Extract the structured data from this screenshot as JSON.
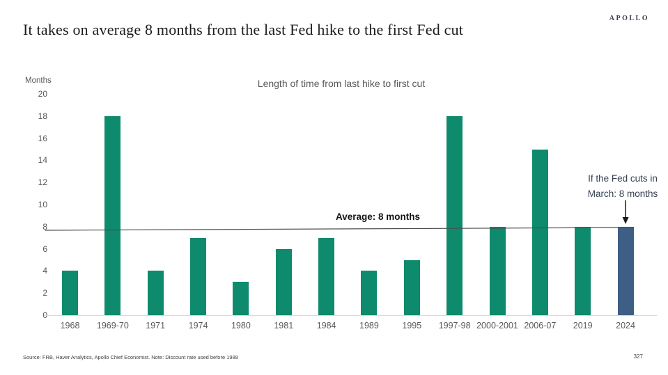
{
  "slide": {
    "title": "It takes on average 8 months from the last Fed hike to the first Fed cut",
    "logo": "APOLLO"
  },
  "chart_data": {
    "type": "bar",
    "title": "Length of time from last hike to first cut",
    "ylabel": "Months",
    "xlabel": "",
    "ylim": [
      0,
      20
    ],
    "yticks": [
      0,
      2,
      4,
      6,
      8,
      10,
      12,
      14,
      16,
      18,
      20
    ],
    "grid": "none",
    "legend": "none",
    "categories": [
      "1968",
      "1969-70",
      "1971",
      "1974",
      "1980",
      "1981",
      "1984",
      "1989",
      "1995",
      "1997-98",
      "2000-2001",
      "2006-07",
      "2019",
      "2024"
    ],
    "values": [
      4,
      18,
      4,
      7,
      3,
      6,
      7,
      4,
      5,
      18,
      8,
      15,
      8,
      8
    ],
    "bar_color": "#0e8a6d",
    "highlight_color": "#3e5f85",
    "highlight_index": 13,
    "average_line": {
      "value": 8,
      "label": "Average: 8 months",
      "color": "#4d4d4d"
    },
    "annotation": {
      "line1": "If the Fed cuts in",
      "line2": "March: 8 months",
      "target_category": "2024"
    }
  },
  "footer": {
    "source": "Source: FRB, Haver Analytics, Apollo Chief Economist. Note: Discount rate used before 1988",
    "page": "327"
  }
}
